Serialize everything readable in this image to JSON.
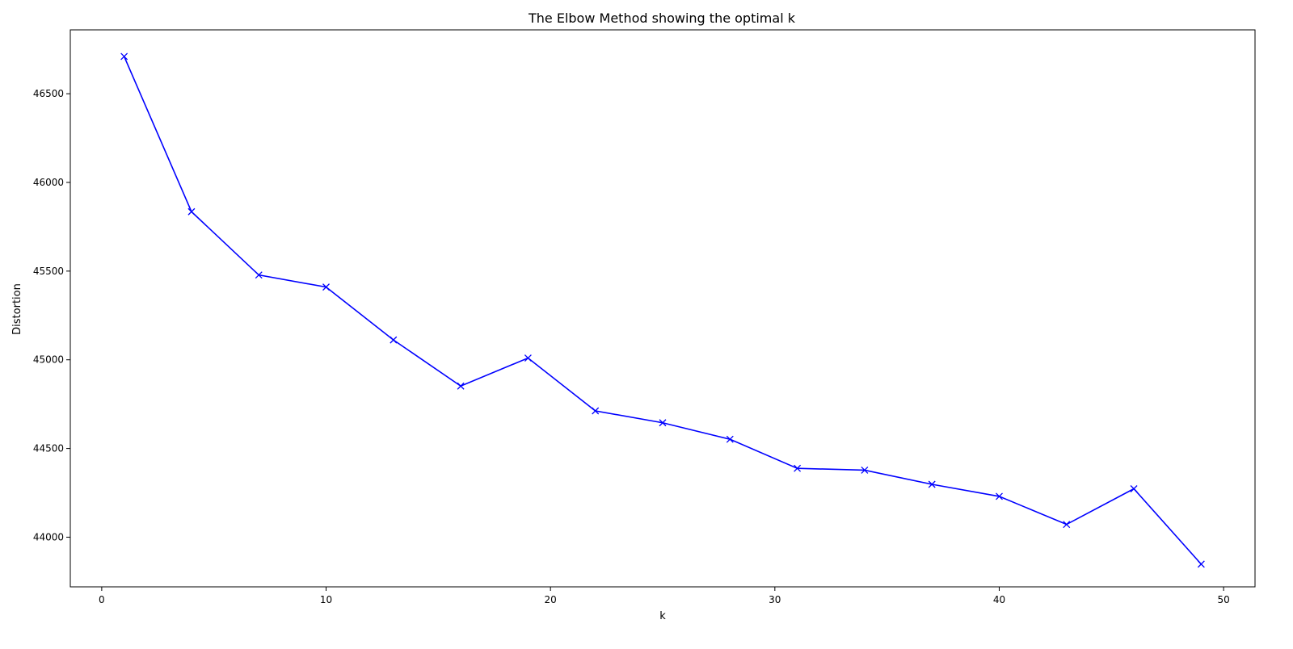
{
  "chart_data": {
    "type": "line",
    "title": "The Elbow Method showing the optimal k",
    "xlabel": "k",
    "ylabel": "Distortion",
    "xlim": [
      -1.4,
      51.4
    ],
    "ylim": [
      43720,
      46860
    ],
    "xticks": [
      0,
      10,
      20,
      30,
      40,
      50
    ],
    "yticks": [
      44000,
      44500,
      45000,
      45500,
      46000,
      46500
    ],
    "grid": false,
    "line_color": "#0000ff",
    "marker": "x",
    "series": [
      {
        "x": [
          1,
          4,
          7,
          10,
          13,
          16,
          19,
          22,
          25,
          28,
          31,
          34,
          37,
          40,
          43,
          46,
          49
        ],
        "values": [
          46710,
          45835,
          45478,
          45410,
          45112,
          44852,
          45010,
          44712,
          44645,
          44552,
          44388,
          44378,
          44298,
          44230,
          44072,
          44273,
          43848
        ]
      }
    ]
  }
}
